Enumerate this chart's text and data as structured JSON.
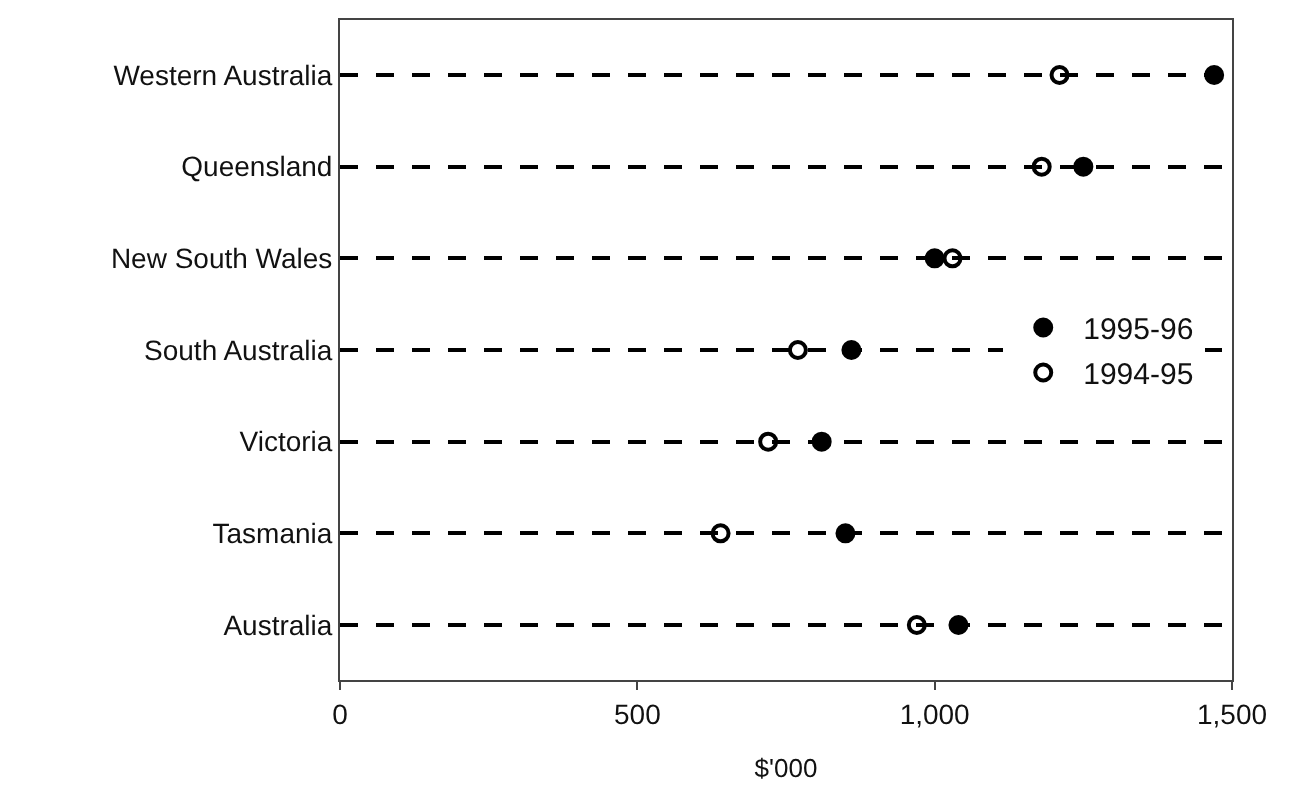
{
  "chart_data": {
    "type": "scatter",
    "orientation": "horizontal",
    "xlabel": "$'000",
    "categories": [
      "Western Australia",
      "Queensland",
      "New South Wales",
      "South Australia",
      "Victoria",
      "Tasmania",
      "Australia"
    ],
    "series": [
      {
        "name": "1995-96",
        "color": "#000000",
        "marker": "circle",
        "values": [
          1470,
          1250,
          1000,
          860,
          810,
          850,
          1040
        ]
      },
      {
        "name": "1994-95",
        "color": "#000000",
        "marker": "circle-open",
        "values": [
          1210,
          1180,
          1030,
          770,
          720,
          640,
          970
        ]
      }
    ],
    "xlim": [
      0,
      1500
    ],
    "xticks": [
      0,
      500,
      {
        "value": 1000,
        "label": "1,000"
      },
      {
        "value": 1500,
        "label": "1,500"
      }
    ],
    "grid": "y",
    "legend": "right"
  }
}
